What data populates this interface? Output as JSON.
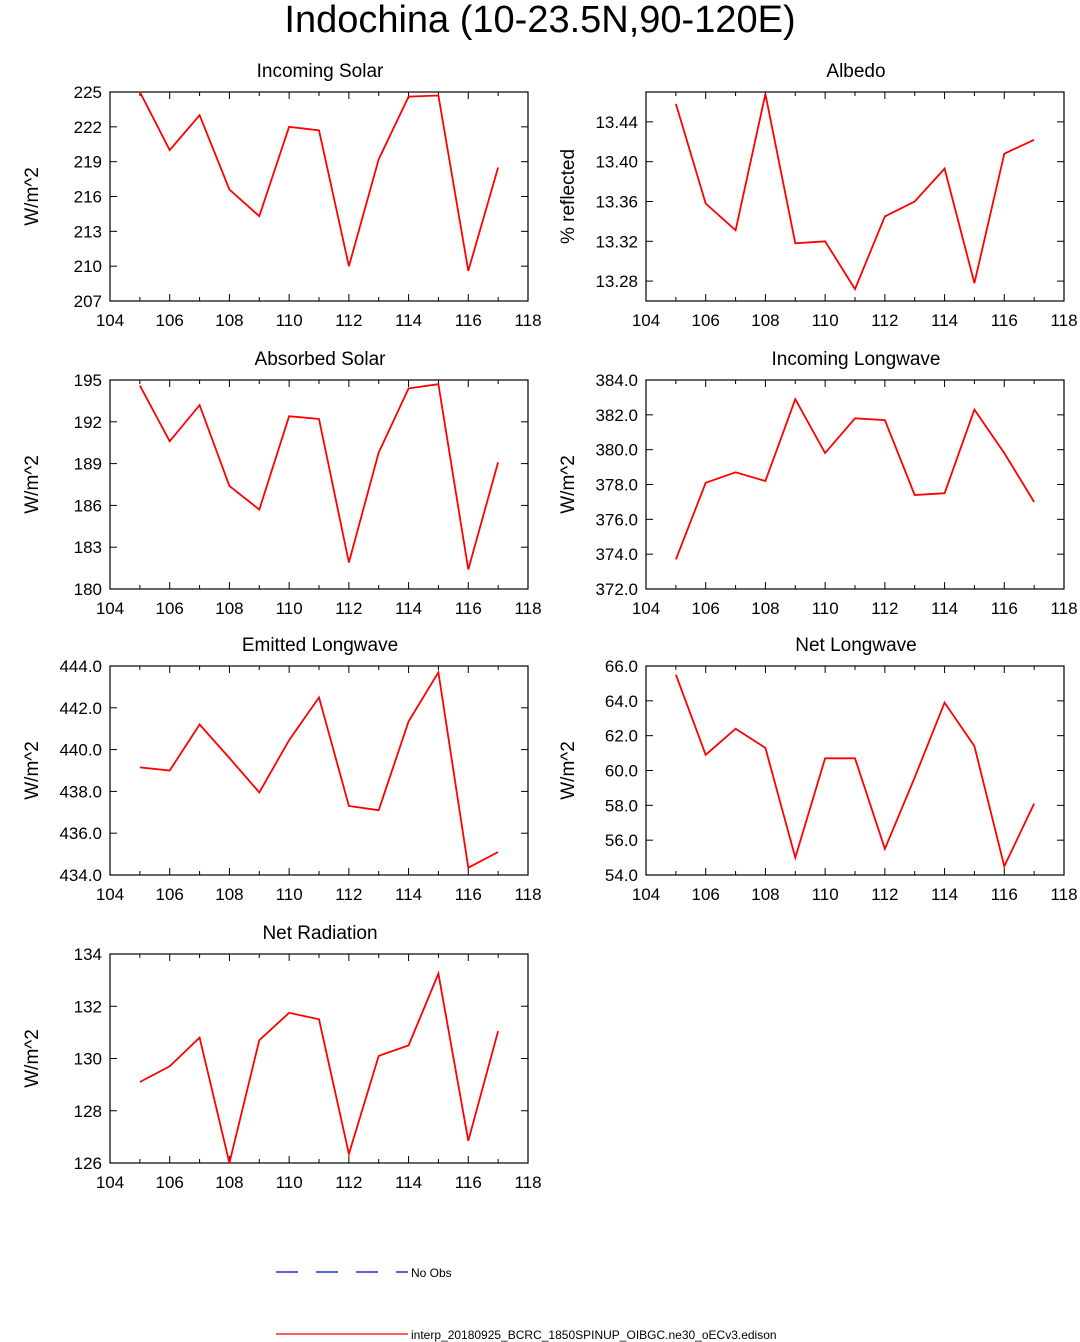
{
  "page_title": "Indochina (10-23.5N,90-120E)",
  "colors": {
    "model_line": "#ff0000",
    "obs_line": "#0000cc",
    "axes": "#000000"
  },
  "legend": {
    "obs_label": "No Obs",
    "model_label": "interp_20180925_BCRC_1850SPINUP_OIBGC.ne30_oECv3.edison"
  },
  "chart_data": [
    {
      "type": "line",
      "title": "Incoming Solar",
      "ylabel": "W/m^2",
      "xlim": [
        104,
        118
      ],
      "ylim": [
        207,
        225
      ],
      "xticks": [
        "104",
        "106",
        "108",
        "110",
        "112",
        "114",
        "116",
        "118"
      ],
      "yticks": [
        "207",
        "210",
        "213",
        "216",
        "219",
        "222",
        "225"
      ],
      "x": [
        105,
        106,
        107,
        108,
        109,
        110,
        111,
        112,
        113,
        114,
        115,
        116,
        117
      ],
      "series": [
        {
          "values": [
            225.0,
            220.0,
            223.0,
            216.6,
            214.3,
            222.0,
            221.7,
            210.0,
            219.2,
            224.6,
            224.7,
            209.6,
            218.5
          ]
        }
      ]
    },
    {
      "type": "line",
      "title": "Albedo",
      "ylabel": "% reflected",
      "xlim": [
        104,
        118
      ],
      "ylim": [
        13.26,
        13.47
      ],
      "xticks": [
        "104",
        "106",
        "108",
        "110",
        "112",
        "114",
        "116",
        "118"
      ],
      "yticks": [
        "13.28",
        "13.32",
        "13.36",
        "13.40",
        "13.44"
      ],
      "x": [
        105,
        106,
        107,
        108,
        109,
        110,
        111,
        112,
        113,
        114,
        115,
        116,
        117
      ],
      "series": [
        {
          "values": [
            13.458,
            13.358,
            13.331,
            13.468,
            13.318,
            13.32,
            13.272,
            13.345,
            13.36,
            13.393,
            13.278,
            13.408,
            13.422
          ]
        }
      ]
    },
    {
      "type": "line",
      "title": "Absorbed Solar",
      "ylabel": "W/m^2",
      "xlim": [
        104,
        118
      ],
      "ylim": [
        180,
        195
      ],
      "xticks": [
        "104",
        "106",
        "108",
        "110",
        "112",
        "114",
        "116",
        "118"
      ],
      "yticks": [
        "180",
        "183",
        "186",
        "189",
        "192",
        "195"
      ],
      "x": [
        105,
        106,
        107,
        108,
        109,
        110,
        111,
        112,
        113,
        114,
        115,
        116,
        117
      ],
      "series": [
        {
          "values": [
            194.6,
            190.6,
            193.2,
            187.4,
            185.7,
            192.4,
            192.2,
            181.9,
            189.8,
            194.4,
            194.7,
            181.4,
            189.1
          ]
        }
      ]
    },
    {
      "type": "line",
      "title": "Incoming Longwave",
      "ylabel": "W/m^2",
      "xlim": [
        104,
        118
      ],
      "ylim": [
        372,
        384
      ],
      "xticks": [
        "104",
        "106",
        "108",
        "110",
        "112",
        "114",
        "116",
        "118"
      ],
      "yticks": [
        "372.0",
        "374.0",
        "376.0",
        "378.0",
        "380.0",
        "382.0",
        "384.0"
      ],
      "x": [
        105,
        106,
        107,
        108,
        109,
        110,
        111,
        112,
        113,
        114,
        115,
        116,
        117
      ],
      "series": [
        {
          "values": [
            373.7,
            378.1,
            378.7,
            378.2,
            382.9,
            379.8,
            381.8,
            381.7,
            377.4,
            377.5,
            382.3,
            379.8,
            377.0
          ]
        }
      ]
    },
    {
      "type": "line",
      "title": "Emitted Longwave",
      "ylabel": "W/m^2",
      "xlim": [
        104,
        118
      ],
      "ylim": [
        434,
        444
      ],
      "xticks": [
        "104",
        "106",
        "108",
        "110",
        "112",
        "114",
        "116",
        "118"
      ],
      "yticks": [
        "434.0",
        "436.0",
        "438.0",
        "440.0",
        "442.0",
        "444.0"
      ],
      "x": [
        105,
        106,
        107,
        108,
        109,
        110,
        111,
        112,
        113,
        114,
        115,
        116,
        117
      ],
      "series": [
        {
          "values": [
            439.15,
            439.0,
            441.2,
            439.6,
            437.95,
            440.45,
            442.5,
            437.3,
            437.1,
            441.35,
            443.7,
            434.35,
            435.1
          ]
        }
      ]
    },
    {
      "type": "line",
      "title": "Net Longwave",
      "ylabel": "W/m^2",
      "xlim": [
        104,
        118
      ],
      "ylim": [
        54,
        66
      ],
      "xticks": [
        "104",
        "106",
        "108",
        "110",
        "112",
        "114",
        "116",
        "118"
      ],
      "yticks": [
        "54.0",
        "56.0",
        "58.0",
        "60.0",
        "62.0",
        "64.0",
        "66.0"
      ],
      "x": [
        105,
        106,
        107,
        108,
        109,
        110,
        111,
        112,
        113,
        114,
        115,
        116,
        117
      ],
      "series": [
        {
          "values": [
            65.5,
            60.9,
            62.4,
            61.3,
            55.0,
            60.7,
            60.7,
            55.5,
            59.6,
            63.9,
            61.4,
            54.5,
            58.1
          ]
        }
      ]
    },
    {
      "type": "line",
      "title": "Net Radiation",
      "ylabel": "W/m^2",
      "xlim": [
        104,
        118
      ],
      "ylim": [
        126,
        134
      ],
      "xticks": [
        "104",
        "106",
        "108",
        "110",
        "112",
        "114",
        "116",
        "118"
      ],
      "yticks": [
        "126",
        "128",
        "130",
        "132",
        "134"
      ],
      "x": [
        105,
        106,
        107,
        108,
        109,
        110,
        111,
        112,
        113,
        114,
        115,
        116,
        117
      ],
      "series": [
        {
          "values": [
            129.1,
            129.7,
            130.8,
            126.0,
            130.7,
            131.75,
            131.5,
            126.35,
            130.1,
            130.5,
            133.25,
            126.85,
            131.05
          ]
        }
      ]
    }
  ]
}
